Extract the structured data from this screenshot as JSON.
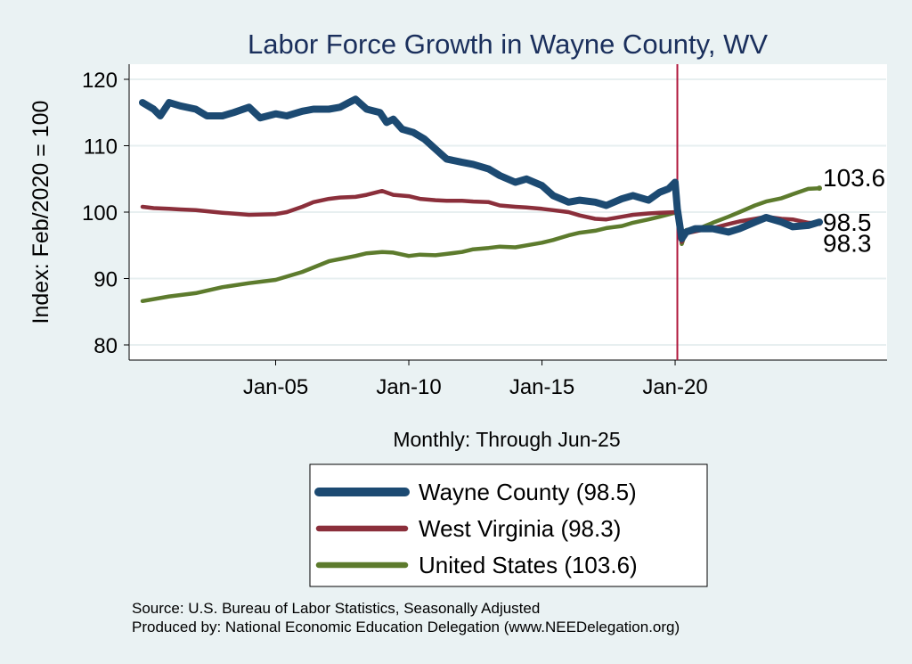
{
  "chart_data": {
    "type": "line",
    "title": "Labor Force Growth in Wayne  County, WV",
    "xlabel": "Monthly: Through Jun-25",
    "ylabel": "Index: Feb/2020 = 100",
    "x_range": [
      "Jan-00",
      "Jun-25"
    ],
    "ylim": [
      78,
      122
    ],
    "y_ticks": [
      80,
      90,
      100,
      110,
      120
    ],
    "x_ticks": [
      {
        "label": "Jan-05",
        "date": "2005-01"
      },
      {
        "label": "Jan-10",
        "date": "2010-01"
      },
      {
        "label": "Jan-15",
        "date": "2015-01"
      },
      {
        "label": "Jan-20",
        "date": "2020-01"
      }
    ],
    "grid": true,
    "reference_line": {
      "date": "2020-02",
      "color": "#b0183c"
    },
    "legend_position": "bottom",
    "series": [
      {
        "name": "Wayne  County (98.5)",
        "end_label": "98.5",
        "color": "#1c4a72",
        "width": 8,
        "points": [
          [
            "2000-01",
            116.5
          ],
          [
            "2000-06",
            115.5
          ],
          [
            "2000-09",
            114.5
          ],
          [
            "2001-01",
            116.5
          ],
          [
            "2001-06",
            116.0
          ],
          [
            "2002-01",
            115.5
          ],
          [
            "2002-06",
            114.5
          ],
          [
            "2003-01",
            114.5
          ],
          [
            "2003-06",
            115.0
          ],
          [
            "2004-01",
            115.8
          ],
          [
            "2004-06",
            114.2
          ],
          [
            "2005-01",
            114.8
          ],
          [
            "2005-06",
            114.5
          ],
          [
            "2006-01",
            115.2
          ],
          [
            "2006-06",
            115.5
          ],
          [
            "2007-01",
            115.5
          ],
          [
            "2007-06",
            115.8
          ],
          [
            "2007-10",
            116.5
          ],
          [
            "2008-01",
            117.0
          ],
          [
            "2008-06",
            115.5
          ],
          [
            "2008-12",
            115.0
          ],
          [
            "2009-03",
            113.5
          ],
          [
            "2009-06",
            114.0
          ],
          [
            "2009-10",
            112.5
          ],
          [
            "2010-03",
            112.0
          ],
          [
            "2010-08",
            111.0
          ],
          [
            "2011-01",
            109.5
          ],
          [
            "2011-06",
            108.0
          ],
          [
            "2012-01",
            107.5
          ],
          [
            "2012-06",
            107.2
          ],
          [
            "2013-01",
            106.5
          ],
          [
            "2013-06",
            105.5
          ],
          [
            "2014-01",
            104.5
          ],
          [
            "2014-06",
            105.0
          ],
          [
            "2015-01",
            104.0
          ],
          [
            "2015-06",
            102.5
          ],
          [
            "2016-01",
            101.5
          ],
          [
            "2016-06",
            101.8
          ],
          [
            "2017-01",
            101.5
          ],
          [
            "2017-06",
            101.0
          ],
          [
            "2018-01",
            102.0
          ],
          [
            "2018-06",
            102.5
          ],
          [
            "2019-01",
            101.8
          ],
          [
            "2019-06",
            103.0
          ],
          [
            "2019-10",
            103.5
          ],
          [
            "2020-01",
            104.5
          ],
          [
            "2020-02",
            100.5
          ],
          [
            "2020-04",
            96.0
          ],
          [
            "2020-06",
            97.0
          ],
          [
            "2020-10",
            97.5
          ],
          [
            "2021-06",
            97.5
          ],
          [
            "2022-01",
            97.0
          ],
          [
            "2022-06",
            97.5
          ],
          [
            "2023-01",
            98.5
          ],
          [
            "2023-06",
            99.2
          ],
          [
            "2024-01",
            98.5
          ],
          [
            "2024-06",
            97.8
          ],
          [
            "2025-01",
            98.0
          ],
          [
            "2025-06",
            98.5
          ]
        ]
      },
      {
        "name": "West Virginia (98.3)",
        "end_label": "98.3",
        "color": "#8b2f3b",
        "width": 4.5,
        "points": [
          [
            "2000-01",
            100.8
          ],
          [
            "2000-06",
            100.6
          ],
          [
            "2001-01",
            100.5
          ],
          [
            "2001-06",
            100.4
          ],
          [
            "2002-01",
            100.3
          ],
          [
            "2003-01",
            99.9
          ],
          [
            "2004-01",
            99.6
          ],
          [
            "2005-01",
            99.7
          ],
          [
            "2005-06",
            100.0
          ],
          [
            "2006-01",
            100.8
          ],
          [
            "2006-06",
            101.5
          ],
          [
            "2007-01",
            102.0
          ],
          [
            "2007-06",
            102.2
          ],
          [
            "2008-01",
            102.3
          ],
          [
            "2008-06",
            102.6
          ],
          [
            "2009-01",
            103.2
          ],
          [
            "2009-06",
            102.6
          ],
          [
            "2010-01",
            102.4
          ],
          [
            "2010-06",
            102.0
          ],
          [
            "2011-01",
            101.8
          ],
          [
            "2011-06",
            101.7
          ],
          [
            "2012-01",
            101.7
          ],
          [
            "2012-06",
            101.6
          ],
          [
            "2013-01",
            101.5
          ],
          [
            "2013-06",
            101.0
          ],
          [
            "2014-01",
            100.8
          ],
          [
            "2014-06",
            100.7
          ],
          [
            "2015-01",
            100.5
          ],
          [
            "2015-06",
            100.3
          ],
          [
            "2016-01",
            100.0
          ],
          [
            "2016-06",
            99.5
          ],
          [
            "2017-01",
            99.0
          ],
          [
            "2017-06",
            98.9
          ],
          [
            "2018-01",
            99.3
          ],
          [
            "2018-06",
            99.6
          ],
          [
            "2019-01",
            99.8
          ],
          [
            "2019-06",
            99.9
          ],
          [
            "2020-02",
            100.0
          ],
          [
            "2020-04",
            95.5
          ],
          [
            "2020-06",
            96.8
          ],
          [
            "2021-01",
            97.3
          ],
          [
            "2021-06",
            97.6
          ],
          [
            "2022-01",
            98.2
          ],
          [
            "2022-06",
            98.6
          ],
          [
            "2023-01",
            99.0
          ],
          [
            "2023-06",
            99.3
          ],
          [
            "2024-01",
            99.0
          ],
          [
            "2024-06",
            98.9
          ],
          [
            "2025-01",
            98.4
          ],
          [
            "2025-06",
            98.3
          ]
        ]
      },
      {
        "name": "United States (103.6)",
        "end_label": "103.6",
        "color": "#5d7b2d",
        "width": 4.5,
        "points": [
          [
            "2000-01",
            86.6
          ],
          [
            "2001-01",
            87.3
          ],
          [
            "2002-01",
            87.8
          ],
          [
            "2003-01",
            88.7
          ],
          [
            "2004-01",
            89.3
          ],
          [
            "2005-01",
            89.8
          ],
          [
            "2006-01",
            91.0
          ],
          [
            "2007-01",
            92.6
          ],
          [
            "2008-01",
            93.4
          ],
          [
            "2008-06",
            93.8
          ],
          [
            "2009-01",
            94.0
          ],
          [
            "2009-06",
            93.9
          ],
          [
            "2010-01",
            93.4
          ],
          [
            "2010-06",
            93.6
          ],
          [
            "2011-01",
            93.5
          ],
          [
            "2011-06",
            93.7
          ],
          [
            "2012-01",
            94.0
          ],
          [
            "2012-06",
            94.4
          ],
          [
            "2013-01",
            94.6
          ],
          [
            "2013-06",
            94.8
          ],
          [
            "2014-01",
            94.7
          ],
          [
            "2014-06",
            95.0
          ],
          [
            "2015-01",
            95.4
          ],
          [
            "2015-06",
            95.8
          ],
          [
            "2016-01",
            96.5
          ],
          [
            "2016-06",
            96.9
          ],
          [
            "2017-01",
            97.2
          ],
          [
            "2017-06",
            97.6
          ],
          [
            "2018-01",
            97.9
          ],
          [
            "2018-06",
            98.4
          ],
          [
            "2019-01",
            98.9
          ],
          [
            "2019-06",
            99.3
          ],
          [
            "2020-02",
            100.0
          ],
          [
            "2020-04",
            95.2
          ],
          [
            "2020-06",
            97.3
          ],
          [
            "2021-01",
            97.7
          ],
          [
            "2021-06",
            98.4
          ],
          [
            "2022-01",
            99.3
          ],
          [
            "2022-06",
            100.0
          ],
          [
            "2023-01",
            101.0
          ],
          [
            "2023-06",
            101.6
          ],
          [
            "2024-01",
            102.1
          ],
          [
            "2024-06",
            102.7
          ],
          [
            "2025-01",
            103.5
          ],
          [
            "2025-06",
            103.6
          ]
        ]
      }
    ]
  },
  "footer": {
    "source": "Source: U.S. Bureau of Labor Statistics, Seasonally Adjusted",
    "produced_by": "Produced by: National Economic Education Delegation (www.NEEDelegation.org)"
  }
}
